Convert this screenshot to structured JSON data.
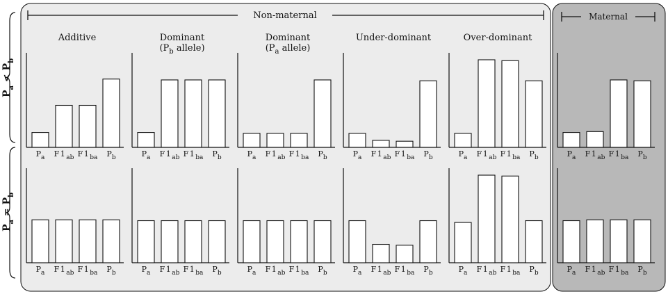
{
  "panels": {
    "non_maternal": {
      "label": "Non-maternal",
      "columns": [
        "Additive",
        "Dominant|(P_b allele)",
        "Dominant|(P_a allele)",
        "Under-dominant",
        "Over-dominant"
      ]
    },
    "maternal": {
      "label": "Maternal"
    }
  },
  "rows": [
    {
      "label_left": "P_a",
      "relation": "<",
      "label_right": "P_b"
    },
    {
      "label_left": "P_a",
      "relation": "=",
      "label_right": "P_b"
    }
  ],
  "x_categories": [
    {
      "main": "P",
      "sub": "a"
    },
    {
      "main": "F1",
      "sub": "ab"
    },
    {
      "main": "F1",
      "sub": "ba"
    },
    {
      "main": "P",
      "sub": "b"
    }
  ],
  "chart_data": [
    {
      "type": "bar",
      "panel": "Additive",
      "row": 1,
      "values": [
        0.17,
        0.48,
        0.48,
        0.78
      ]
    },
    {
      "type": "bar",
      "panel": "Dominant (Pb allele)",
      "row": 1,
      "values": [
        0.17,
        0.77,
        0.77,
        0.77
      ]
    },
    {
      "type": "bar",
      "panel": "Dominant (Pa allele)",
      "row": 1,
      "values": [
        0.16,
        0.16,
        0.16,
        0.77
      ]
    },
    {
      "type": "bar",
      "panel": "Under-dominant",
      "row": 1,
      "values": [
        0.16,
        0.08,
        0.07,
        0.76
      ]
    },
    {
      "type": "bar",
      "panel": "Over-dominant",
      "row": 1,
      "values": [
        0.16,
        1.0,
        0.99,
        0.76
      ]
    },
    {
      "type": "bar",
      "panel": "Maternal",
      "row": 1,
      "values": [
        0.17,
        0.18,
        0.77,
        0.76
      ]
    },
    {
      "type": "bar",
      "panel": "Additive",
      "row": 2,
      "values": [
        0.49,
        0.49,
        0.49,
        0.49
      ]
    },
    {
      "type": "bar",
      "panel": "Dominant (Pb allele)",
      "row": 2,
      "values": [
        0.48,
        0.48,
        0.48,
        0.48
      ]
    },
    {
      "type": "bar",
      "panel": "Dominant (Pa allele)",
      "row": 2,
      "values": [
        0.48,
        0.48,
        0.48,
        0.48
      ]
    },
    {
      "type": "bar",
      "panel": "Under-dominant",
      "row": 2,
      "values": [
        0.48,
        0.21,
        0.2,
        0.48
      ]
    },
    {
      "type": "bar",
      "panel": "Over-dominant",
      "row": 2,
      "values": [
        0.46,
        1.0,
        0.99,
        0.48
      ]
    },
    {
      "type": "bar",
      "panel": "Maternal",
      "row": 2,
      "values": [
        0.48,
        0.49,
        0.49,
        0.49
      ]
    }
  ],
  "colors": {
    "non_maternal_bg": "#ececec",
    "maternal_bg": "#b8b8b8",
    "line": "#111111",
    "bar_fill": "#ffffff"
  }
}
